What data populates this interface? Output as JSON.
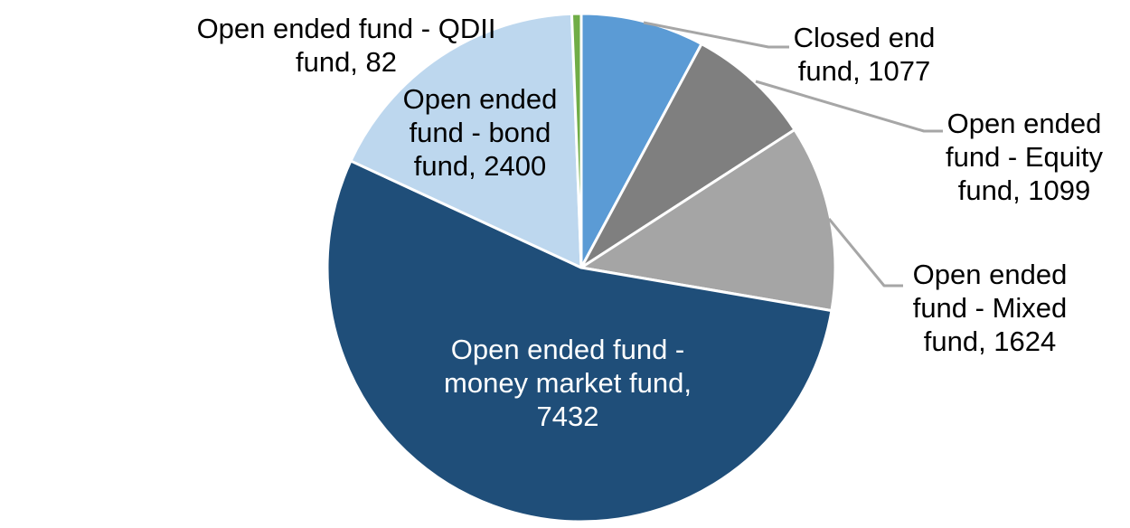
{
  "page": {
    "background_color": "#FFFFFF"
  },
  "chart_data": {
    "type": "pie",
    "title": "",
    "start_angle_deg": 0,
    "direction": "clockwise",
    "legend": "none",
    "slice_border_color": "#FFFFFF",
    "leader_line_color": "#A6A6A6",
    "slices": [
      {
        "label": "Closed end fund",
        "value": 1077,
        "color": "#5B9BD5",
        "label_placement": "outside",
        "label_color": "#000000",
        "label_text": "Closed end fund, 1077",
        "label_lines": [
          "Closed end",
          "fund, 1077"
        ]
      },
      {
        "label": "Open ended fund - Equity fund",
        "value": 1099,
        "color": "#7F7F7F",
        "label_placement": "outside",
        "label_color": "#000000",
        "label_text": "Open ended fund - Equity fund, 1099",
        "label_lines": [
          "Open ended",
          "fund - Equity",
          "fund, 1099"
        ]
      },
      {
        "label": "Open ended fund - Mixed fund",
        "value": 1624,
        "color": "#A5A5A5",
        "label_placement": "outside",
        "label_color": "#000000",
        "label_text": "Open ended fund - Mixed fund, 1624",
        "label_lines": [
          "Open ended",
          "fund - Mixed",
          "fund, 1624"
        ]
      },
      {
        "label": "Open ended fund - money market fund",
        "value": 7432,
        "color": "#1F4E79",
        "label_placement": "inside",
        "label_color": "#FFFFFF",
        "label_text": "Open ended fund - money market fund, 7432",
        "label_lines": [
          "Open ended fund -",
          "money market fund,",
          "7432"
        ]
      },
      {
        "label": "Open ended fund - bond fund",
        "value": 2400,
        "color": "#BDD7EE",
        "label_placement": "inside",
        "label_color": "#000000",
        "label_text": "Open ended fund - bond fund, 2400",
        "label_lines": [
          "Open ended",
          "fund - bond",
          "fund, 2400"
        ]
      },
      {
        "label": "Open ended fund - QDII fund",
        "value": 82,
        "color": "#70AD47",
        "label_placement": "outside",
        "label_color": "#000000",
        "label_text": "Open ended fund - QDII fund, 82",
        "label_lines": [
          "Open ended fund - QDII",
          "fund, 82"
        ]
      }
    ]
  }
}
